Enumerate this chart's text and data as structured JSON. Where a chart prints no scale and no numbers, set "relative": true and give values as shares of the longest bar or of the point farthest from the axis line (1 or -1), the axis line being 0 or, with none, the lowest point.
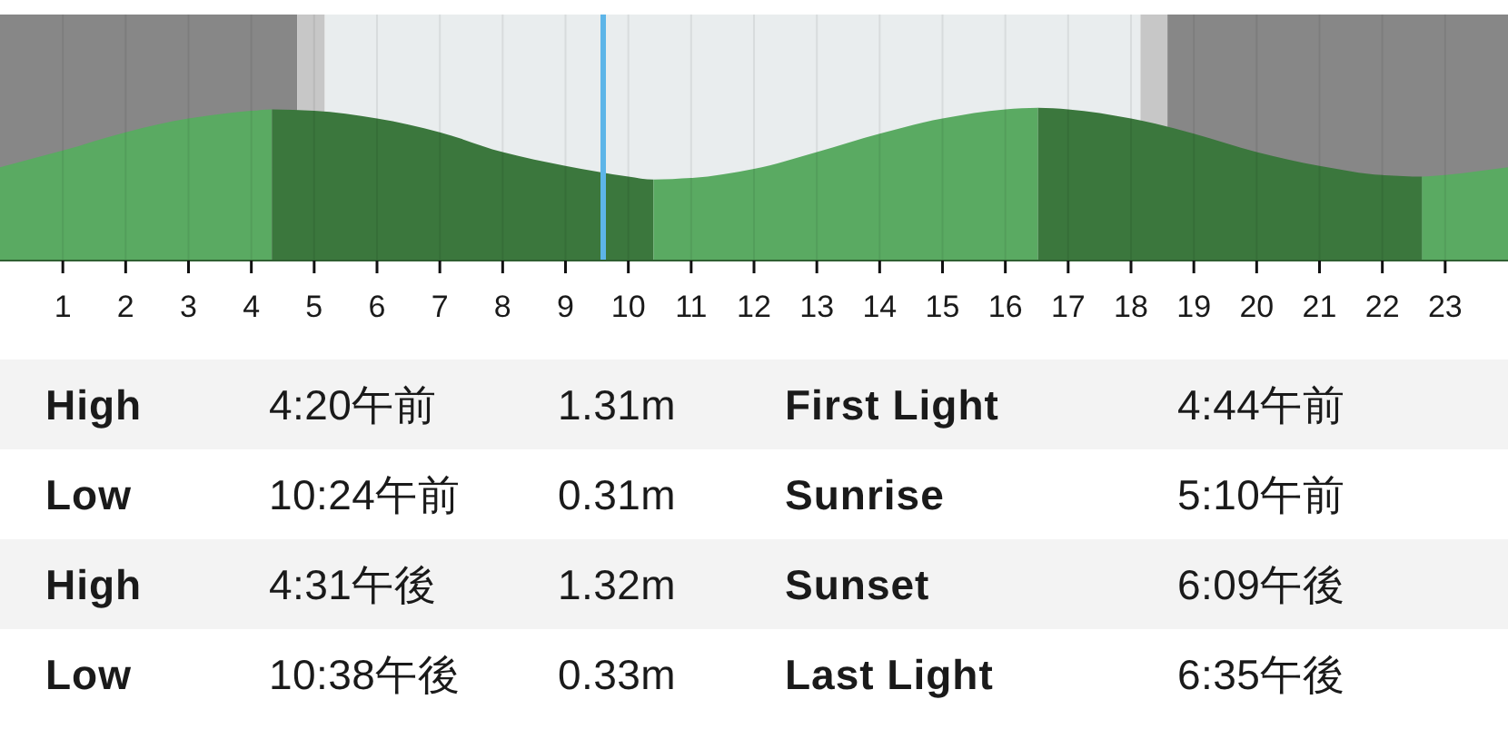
{
  "chart_data": {
    "type": "area",
    "relative": true,
    "xlim": [
      0,
      24
    ],
    "xticks": [
      1,
      2,
      3,
      4,
      5,
      6,
      7,
      8,
      9,
      10,
      11,
      12,
      13,
      14,
      15,
      16,
      17,
      18,
      19,
      20,
      21,
      22,
      23
    ],
    "grid": "x",
    "series": [
      {
        "color": "#5aaa62",
        "x": [
          0,
          1,
          2,
          3,
          4,
          4.33
        ],
        "values": [
          0.61,
          0.72,
          0.84,
          0.93,
          0.98,
          0.99
        ]
      },
      {
        "color": "#3b773d",
        "x": [
          4.33,
          5,
          6,
          7,
          8,
          9,
          10,
          10.4
        ],
        "values": [
          0.99,
          0.98,
          0.93,
          0.84,
          0.71,
          0.62,
          0.55,
          0.53
        ]
      },
      {
        "color": "#5aaa62",
        "x": [
          10.4,
          11,
          12,
          13,
          14,
          15,
          16,
          16.52
        ],
        "values": [
          0.53,
          0.54,
          0.6,
          0.71,
          0.83,
          0.93,
          0.99,
          1
        ]
      },
      {
        "color": "#3b773d",
        "x": [
          16.52,
          17,
          18,
          19,
          20,
          21,
          22,
          22.63
        ],
        "values": [
          1,
          0.99,
          0.93,
          0.83,
          0.71,
          0.62,
          0.56,
          0.55
        ]
      },
      {
        "color": "#5aaa62",
        "x": [
          22.63,
          23,
          24
        ],
        "values": [
          0.55,
          0.56,
          0.61
        ]
      }
    ],
    "bands": [
      {
        "axis": "x",
        "from": 0,
        "to": 4.73,
        "color": "#878787"
      },
      {
        "axis": "x",
        "from": 4.73,
        "to": 5.17,
        "color": "#c7c7c7"
      },
      {
        "axis": "x",
        "from": 5.17,
        "to": 18.15,
        "color": "#e9edee"
      },
      {
        "axis": "x",
        "from": 18.15,
        "to": 18.58,
        "color": "#c7c7c7"
      },
      {
        "axis": "x",
        "from": 18.58,
        "to": 24,
        "color": "#878787"
      }
    ],
    "ref_lines": [
      {
        "axis": "x",
        "value": 9.6,
        "color": "#5db5e8"
      }
    ],
    "annotations": [
      "High",
      "4:20午前",
      "1.31m",
      "First Light",
      "4:44午前",
      "Low",
      "10:24午前",
      "0.31m",
      "Sunrise",
      "5:10午前",
      "High",
      "4:31午後",
      "1.32m",
      "Sunset",
      "6:09午後",
      "Low",
      "10:38午後",
      "0.33m",
      "Last Light",
      "6:35午後"
    ]
  }
}
